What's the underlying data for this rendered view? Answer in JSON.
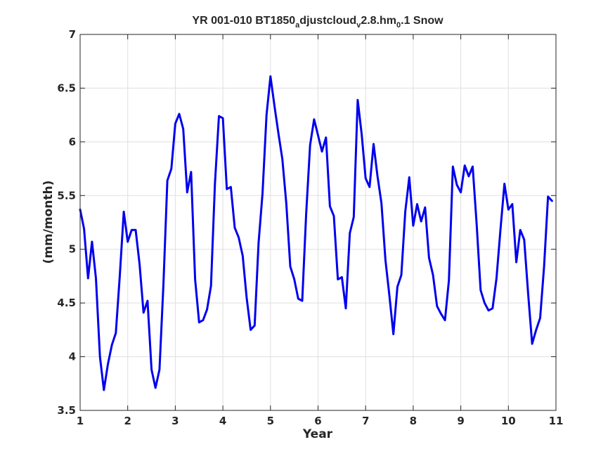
{
  "chart_data": {
    "type": "line",
    "title_parts": [
      {
        "text": "YR 001-010 BT1850",
        "sub": false
      },
      {
        "text": "a",
        "sub": true
      },
      {
        "text": "djustcloud",
        "sub": false
      },
      {
        "text": "v",
        "sub": true
      },
      {
        "text": "2.8.hm",
        "sub": false
      },
      {
        "text": "0",
        "sub": true
      },
      {
        "text": ".1 Snow",
        "sub": false
      }
    ],
    "xlabel": "Year",
    "ylabel": "(mm/month)",
    "xlim": [
      1,
      11
    ],
    "ylim": [
      3.5,
      7
    ],
    "xticks": [
      1,
      2,
      3,
      4,
      5,
      6,
      7,
      8,
      9,
      10,
      11
    ],
    "yticks": [
      3.5,
      4,
      4.5,
      5,
      5.5,
      6,
      6.5,
      7
    ],
    "ytick_labels": [
      "3.5",
      "4",
      "4.5",
      "5",
      "5.5",
      "6",
      "6.5",
      "7"
    ],
    "grid": true,
    "line_color": "#0000ee",
    "series": [
      {
        "x": [
          1.0,
          1.083,
          1.167,
          1.25,
          1.333,
          1.417,
          1.5,
          1.583,
          1.667,
          1.75,
          1.833,
          1.917,
          2.0,
          2.083,
          2.167,
          2.25,
          2.333,
          2.417,
          2.5,
          2.583,
          2.667,
          2.75,
          2.833,
          2.917,
          3.0,
          3.083,
          3.167,
          3.25,
          3.333,
          3.417,
          3.5,
          3.583,
          3.667,
          3.75,
          3.833,
          3.917,
          4.0,
          4.083,
          4.167,
          4.25,
          4.333,
          4.417,
          4.5,
          4.583,
          4.667,
          4.75,
          4.833,
          4.917,
          5.0,
          5.083,
          5.167,
          5.25,
          5.333,
          5.417,
          5.5,
          5.583,
          5.667,
          5.75,
          5.833,
          5.917,
          6.0,
          6.083,
          6.167,
          6.25,
          6.333,
          6.417,
          6.5,
          6.583,
          6.667,
          6.75,
          6.833,
          6.917,
          7.0,
          7.083,
          7.167,
          7.25,
          7.333,
          7.417,
          7.5,
          7.583,
          7.667,
          7.75,
          7.833,
          7.917,
          8.0,
          8.083,
          8.167,
          8.25,
          8.333,
          8.417,
          8.5,
          8.583,
          8.667,
          8.75,
          8.833,
          8.917,
          9.0,
          9.083,
          9.167,
          9.25,
          9.333,
          9.417,
          9.5,
          9.583,
          9.667,
          9.75,
          9.833,
          9.917,
          10.0,
          10.083,
          10.167,
          10.25,
          10.333,
          10.417,
          10.5,
          10.583,
          10.667,
          10.75,
          10.833,
          10.917
        ],
        "y": [
          5.37,
          5.19,
          4.73,
          5.07,
          4.73,
          4.0,
          3.69,
          3.93,
          4.11,
          4.22,
          4.75,
          5.35,
          5.07,
          5.18,
          5.18,
          4.86,
          4.41,
          4.52,
          3.88,
          3.71,
          3.88,
          4.67,
          5.64,
          5.75,
          6.17,
          6.26,
          6.12,
          5.53,
          5.72,
          4.72,
          4.32,
          4.34,
          4.44,
          4.66,
          5.61,
          6.24,
          6.22,
          5.56,
          5.58,
          5.2,
          5.11,
          4.94,
          4.55,
          4.25,
          4.29,
          5.06,
          5.52,
          6.25,
          6.61,
          6.34,
          6.08,
          5.84,
          5.43,
          4.84,
          4.72,
          4.54,
          4.52,
          5.33,
          5.97,
          6.21,
          6.06,
          5.91,
          6.04,
          5.4,
          5.31,
          4.72,
          4.74,
          4.45,
          5.15,
          5.3,
          6.39,
          6.07,
          5.66,
          5.58,
          5.98,
          5.68,
          5.43,
          4.9,
          4.57,
          4.21,
          4.65,
          4.76,
          5.35,
          5.67,
          5.22,
          5.42,
          5.26,
          5.39,
          4.92,
          4.76,
          4.47,
          4.4,
          4.34,
          4.71,
          5.77,
          5.6,
          5.53,
          5.78,
          5.68,
          5.77,
          5.24,
          4.62,
          4.5,
          4.43,
          4.45,
          4.73,
          5.18,
          5.61,
          5.37,
          5.42,
          4.88,
          5.18,
          5.09,
          4.58,
          4.12,
          4.25,
          4.36,
          4.84,
          5.49,
          5.45
        ]
      }
    ]
  }
}
